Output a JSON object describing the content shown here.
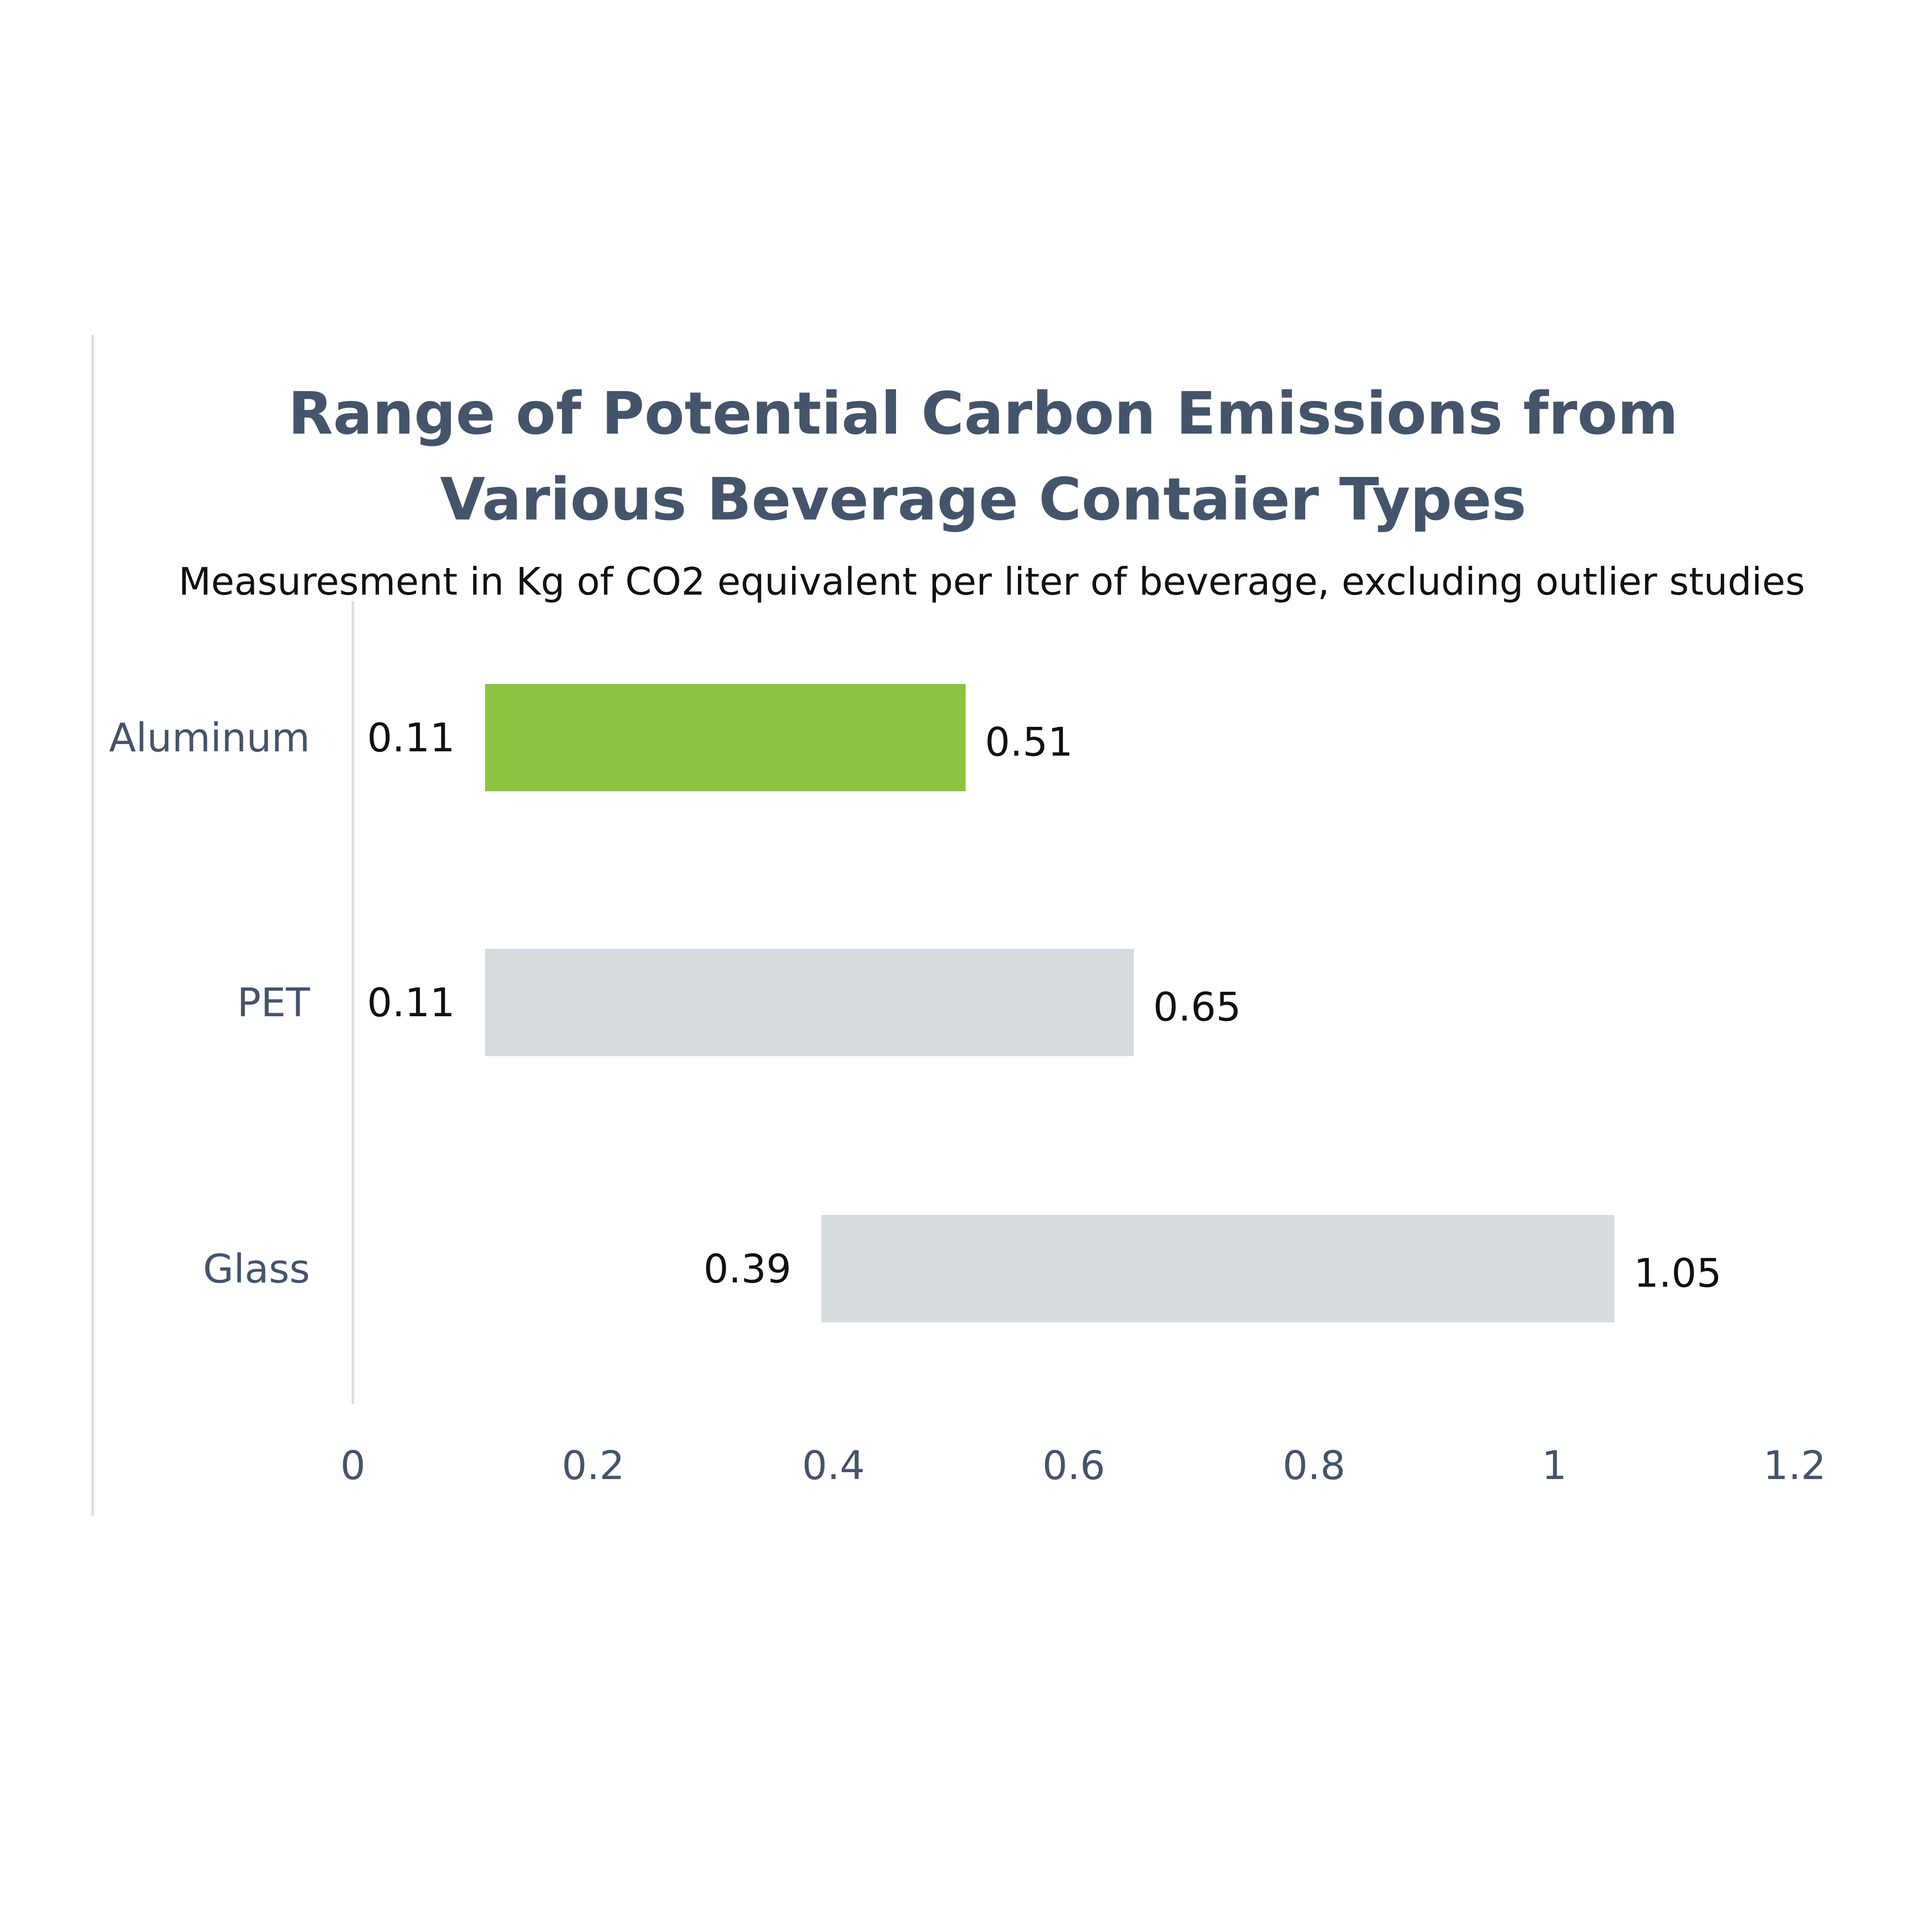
{
  "chart_data": {
    "type": "bar",
    "orientation": "horizontal",
    "subtype": "floating-range",
    "title": [
      "Range of Potential Carbon Emissions from",
      "Various Beverage Contaier Types"
    ],
    "subtitle": "Measuresment in Kg of CO2 equivalent per liter of beverage, excluding outlier studies",
    "categories": [
      "Aluminum",
      "PET",
      "Glass"
    ],
    "low": [
      0.11,
      0.11,
      0.39
    ],
    "high": [
      0.51,
      0.65,
      1.05
    ],
    "low_labels": [
      "0.11",
      "0.11",
      "0.39"
    ],
    "high_labels": [
      "0.51",
      "0.65",
      "1.05"
    ],
    "colors": [
      "#8bc53f",
      "#d6dbdf",
      "#d6dbdf"
    ],
    "xlim": [
      0,
      1.2
    ],
    "xticks": [
      0,
      0.2,
      0.4,
      0.6,
      0.8,
      1,
      1.2
    ],
    "xtick_labels": [
      "0",
      "0.2",
      "0.4",
      "0.6",
      "0.8",
      "1",
      "1.2"
    ],
    "grid": false,
    "legend": "none"
  }
}
